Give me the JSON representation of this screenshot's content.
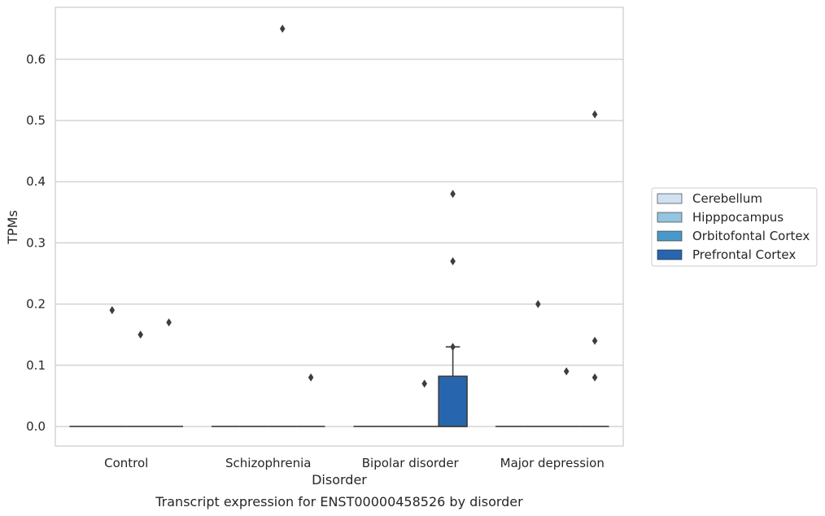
{
  "caption": "Transcript expression for ENST00000458526 by disorder",
  "chart_data": {
    "type": "box",
    "xlabel": "Disorder",
    "ylabel": "TPMs",
    "ylim": [
      -0.032,
      0.685
    ],
    "yticks": [
      0.0,
      0.1,
      0.2,
      0.3,
      0.4,
      0.5,
      0.6
    ],
    "ytick_labels": [
      "0.0",
      "0.1",
      "0.2",
      "0.3",
      "0.4",
      "0.5",
      "0.6"
    ],
    "grid": "horizontal",
    "legend_position": "right",
    "categories": [
      "Control",
      "Schizophrenia",
      "Bipolar disorder",
      "Major depression"
    ],
    "series": [
      {
        "name": "Cerebellum",
        "color": "#d0e1f2"
      },
      {
        "name": "Hipppocampus",
        "color": "#94c4df"
      },
      {
        "name": "Orbitofontal Cortex",
        "color": "#4a98c9"
      },
      {
        "name": "Prefrontal Cortex",
        "color": "#2766ae"
      }
    ],
    "boxes": [
      {
        "category": 0,
        "series": 0,
        "q1": 0,
        "median": 0,
        "q3": 0,
        "whisker_low": 0,
        "whisker_high": 0
      },
      {
        "category": 0,
        "series": 1,
        "q1": 0,
        "median": 0,
        "q3": 0,
        "whisker_low": 0,
        "whisker_high": 0
      },
      {
        "category": 0,
        "series": 2,
        "q1": 0,
        "median": 0,
        "q3": 0,
        "whisker_low": 0,
        "whisker_high": 0
      },
      {
        "category": 0,
        "series": 3,
        "q1": 0,
        "median": 0,
        "q3": 0,
        "whisker_low": 0,
        "whisker_high": 0
      },
      {
        "category": 1,
        "series": 0,
        "q1": 0,
        "median": 0,
        "q3": 0,
        "whisker_low": 0,
        "whisker_high": 0
      },
      {
        "category": 1,
        "series": 1,
        "q1": 0,
        "median": 0,
        "q3": 0,
        "whisker_low": 0,
        "whisker_high": 0
      },
      {
        "category": 1,
        "series": 2,
        "q1": 0,
        "median": 0,
        "q3": 0,
        "whisker_low": 0,
        "whisker_high": 0
      },
      {
        "category": 1,
        "series": 3,
        "q1": 0,
        "median": 0,
        "q3": 0,
        "whisker_low": 0,
        "whisker_high": 0
      },
      {
        "category": 2,
        "series": 0,
        "q1": 0,
        "median": 0,
        "q3": 0,
        "whisker_low": 0,
        "whisker_high": 0
      },
      {
        "category": 2,
        "series": 1,
        "q1": 0,
        "median": 0,
        "q3": 0,
        "whisker_low": 0,
        "whisker_high": 0
      },
      {
        "category": 2,
        "series": 2,
        "q1": 0,
        "median": 0,
        "q3": 0,
        "whisker_low": 0,
        "whisker_high": 0
      },
      {
        "category": 2,
        "series": 3,
        "q1": 0,
        "median": 0,
        "q3": 0.082,
        "whisker_low": 0,
        "whisker_high": 0.13
      },
      {
        "category": 3,
        "series": 0,
        "q1": 0,
        "median": 0,
        "q3": 0,
        "whisker_low": 0,
        "whisker_high": 0
      },
      {
        "category": 3,
        "series": 1,
        "q1": 0,
        "median": 0,
        "q3": 0,
        "whisker_low": 0,
        "whisker_high": 0
      },
      {
        "category": 3,
        "series": 2,
        "q1": 0,
        "median": 0,
        "q3": 0,
        "whisker_low": 0,
        "whisker_high": 0
      },
      {
        "category": 3,
        "series": 3,
        "q1": 0,
        "median": 0,
        "q3": 0,
        "whisker_low": 0,
        "whisker_high": 0
      }
    ],
    "outliers": [
      {
        "category": 0,
        "series": 1,
        "value": 0.19
      },
      {
        "category": 0,
        "series": 2,
        "value": 0.15
      },
      {
        "category": 0,
        "series": 3,
        "value": 0.17
      },
      {
        "category": 1,
        "series": 2,
        "value": 0.65
      },
      {
        "category": 1,
        "series": 3,
        "value": 0.08
      },
      {
        "category": 2,
        "series": 2,
        "value": 0.07
      },
      {
        "category": 2,
        "series": 3,
        "value": 0.13
      },
      {
        "category": 2,
        "series": 3,
        "value": 0.27
      },
      {
        "category": 2,
        "series": 3,
        "value": 0.38
      },
      {
        "category": 3,
        "series": 1,
        "value": 0.2
      },
      {
        "category": 3,
        "series": 2,
        "value": 0.09
      },
      {
        "category": 3,
        "series": 3,
        "value": 0.51
      },
      {
        "category": 3,
        "series": 3,
        "value": 0.14
      },
      {
        "category": 3,
        "series": 3,
        "value": 0.08
      }
    ]
  }
}
